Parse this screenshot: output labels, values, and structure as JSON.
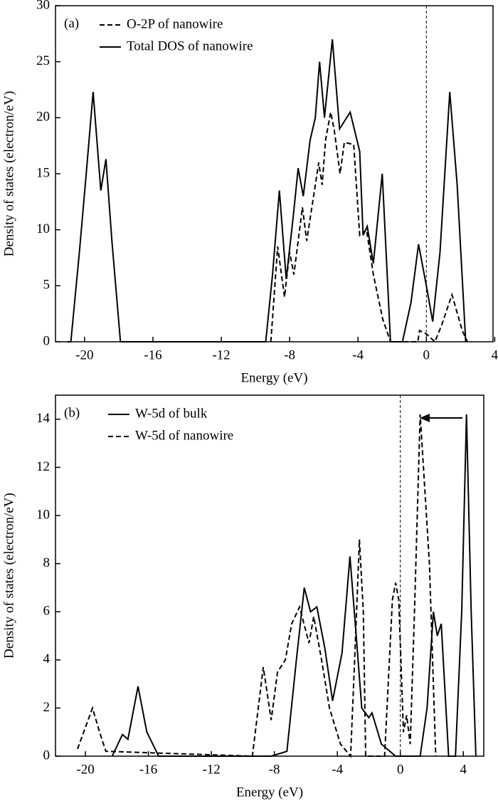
{
  "chart_data": [
    {
      "type": "line",
      "panel_label": "(a)",
      "xlabel": "Energy (eV)",
      "ylabel": "Density of states (electron/eV)",
      "xlim": [
        -21.7,
        3.9
      ],
      "ylim": [
        0,
        30
      ],
      "xticks": [
        -20,
        -16,
        -12,
        -8,
        -4,
        0,
        4
      ],
      "yticks": [
        0,
        5,
        10,
        15,
        20,
        25,
        30
      ],
      "vline": 0,
      "series": [
        {
          "name": "O-2P of nanowire",
          "color": "#000000",
          "dashed": true,
          "x": [
            -9.1,
            -8.7,
            -8.3,
            -8.0,
            -7.75,
            -7.25,
            -7.0,
            -6.6,
            -6.3,
            -6.1,
            -5.9,
            -5.6,
            -5.4,
            -5.05,
            -4.8,
            -4.25,
            -3.9,
            -3.5,
            -3.1,
            -2.55,
            -2.1,
            -0.5,
            -0.4,
            0.0,
            0.5,
            0.9,
            1.5,
            2.1,
            2.4
          ],
          "values": [
            0,
            8.5,
            4,
            8,
            6,
            12,
            9,
            13,
            16,
            14,
            18,
            20.5,
            19,
            15,
            17.8,
            17.6,
            9.5,
            10,
            6,
            2,
            0,
            0,
            1,
            0.7,
            0,
            1.5,
            4.2,
            1,
            0
          ]
        },
        {
          "name": "Total DOS of nanowire",
          "color": "#000000",
          "dashed": false,
          "x": [
            -21.0,
            -20.8,
            -20.3,
            -19.9,
            -19.5,
            -19.05,
            -18.75,
            -18.4,
            -17.9,
            -9.4,
            -9.0,
            -8.6,
            -8.2,
            -7.8,
            -7.5,
            -7.2,
            -6.8,
            -6.5,
            -6.25,
            -5.96,
            -5.5,
            -5.08,
            -4.46,
            -3.9,
            -3.7,
            -3.46,
            -3.1,
            -2.58,
            -2.1,
            -1.4,
            -0.9,
            -0.46,
            0.0,
            0.37,
            0.8,
            1.37,
            1.8,
            2.3
          ],
          "values": [
            0,
            0,
            8,
            15,
            22.3,
            13.5,
            16.3,
            9,
            0,
            0,
            6,
            13.5,
            5.6,
            11,
            15.5,
            13,
            18,
            20,
            25,
            20,
            27,
            19,
            20.5,
            17,
            9.5,
            10.3,
            7,
            15,
            0,
            0,
            3.5,
            8.7,
            5,
            1.8,
            8,
            22.3,
            14,
            0
          ]
        }
      ]
    },
    {
      "type": "line",
      "panel_label": "(b)",
      "xlabel": "Energy (eV)",
      "ylabel": "Density of states (electron/eV)",
      "xlim": [
        -21.9,
        5.3
      ],
      "ylim": [
        0,
        15
      ],
      "xticks": [
        -20,
        -16,
        -12,
        -8,
        -4,
        0,
        4
      ],
      "yticks": [
        0,
        2,
        4,
        6,
        8,
        10,
        12,
        14
      ],
      "vline": 0,
      "series": [
        {
          "name": "W-5d of bulk",
          "color": "#000000",
          "dashed": false,
          "x": [
            -18.3,
            -17.65,
            -17.3,
            -16.66,
            -16.1,
            -15.35,
            -8.2,
            -7.2,
            -6.6,
            -6.1,
            -5.7,
            -5.3,
            -4.8,
            -4.3,
            -3.7,
            -3.2,
            -2.8,
            -2.45,
            -2.0,
            -1.8,
            -1.2,
            -0.3,
            1.26,
            1.7,
            2.1,
            2.35,
            2.6,
            3.07,
            3.5,
            3.9,
            4.2,
            4.5,
            4.8
          ],
          "values": [
            0,
            0.9,
            0.7,
            2.9,
            1,
            0,
            0,
            0.2,
            4,
            7,
            6,
            6.2,
            4.5,
            2.3,
            4.3,
            8.3,
            5,
            2,
            1.6,
            1.8,
            0.5,
            0,
            0,
            2,
            6,
            5,
            5.5,
            0,
            0,
            6,
            14.2,
            6,
            0
          ]
        },
        {
          "name": "W-5d of nanowire",
          "color": "#000000",
          "dashed": true,
          "x": [
            -20.5,
            -20.0,
            -19.55,
            -19.1,
            -18.7,
            -9.4,
            -8.7,
            -8.2,
            -7.8,
            -7.3,
            -6.9,
            -6.4,
            -5.8,
            -5.5,
            -5.0,
            -4.5,
            -3.8,
            -3.16,
            -2.9,
            -2.6,
            -2.35,
            -2.2,
            -1.0,
            -0.5,
            -0.3,
            -0.1,
            0.2,
            0.4,
            0.63,
            0.9,
            1.26,
            1.85,
            2.25
          ],
          "values": [
            0.3,
            1.2,
            2,
            1,
            0.2,
            0,
            3.7,
            1.5,
            3.5,
            4,
            5.5,
            6.2,
            4.7,
            5.8,
            4,
            2,
            0.5,
            0,
            4,
            9,
            6,
            0,
            0,
            6.5,
            7.2,
            6.5,
            1,
            1.7,
            0.5,
            6,
            14.2,
            8,
            0
          ]
        }
      ]
    }
  ]
}
